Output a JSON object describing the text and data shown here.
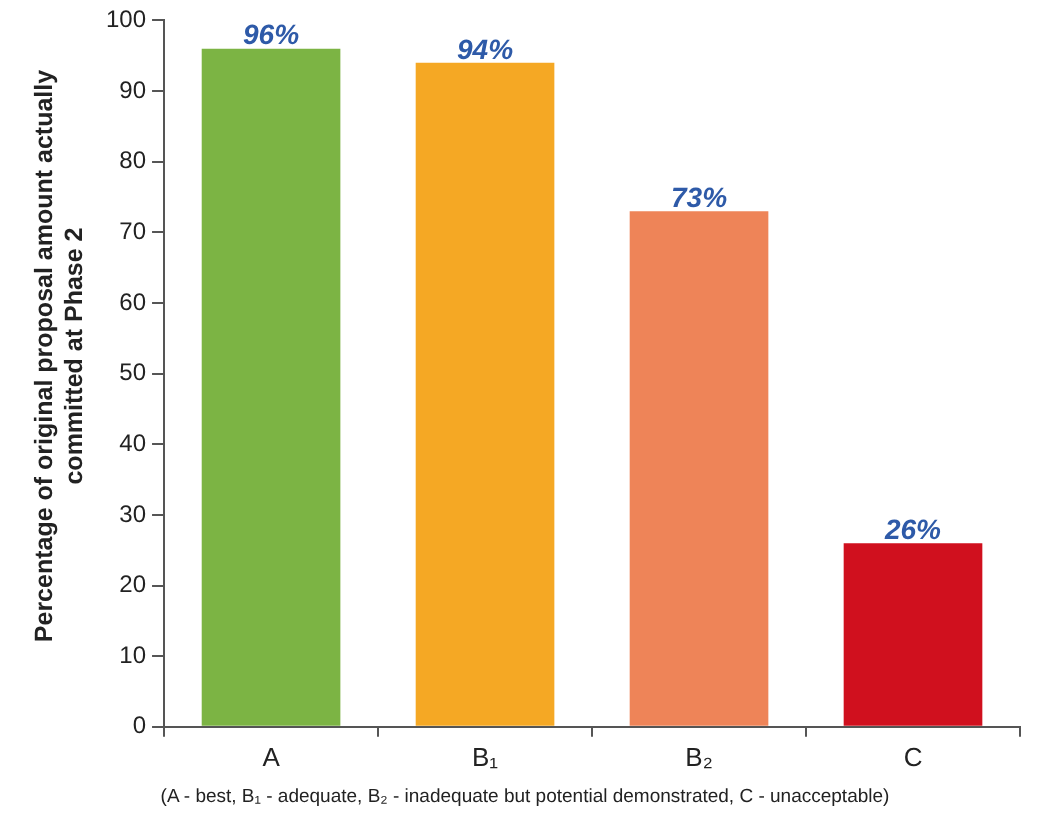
{
  "chart_data": {
    "type": "bar",
    "ylabel": "Percentage of original proposal amount actually committed at Phase 2",
    "categories": [
      "A",
      "B₁",
      "B₂",
      "C"
    ],
    "values": [
      96,
      94,
      73,
      26
    ],
    "colors": [
      "#7cb444",
      "#f5a824",
      "#ee8458",
      "#d0101e"
    ],
    "value_labels": [
      "96%",
      "94%",
      "73%",
      "26%"
    ],
    "ylim": [
      0,
      100
    ],
    "yticks": [
      0,
      10,
      20,
      30,
      40,
      50,
      60,
      70,
      80,
      90,
      100
    ],
    "grid": false,
    "legend": false,
    "annotations": [
      "(A - best, B₁ - adequate, B₂ - inadequate but potential demonstrated, C - unacceptable)"
    ]
  }
}
